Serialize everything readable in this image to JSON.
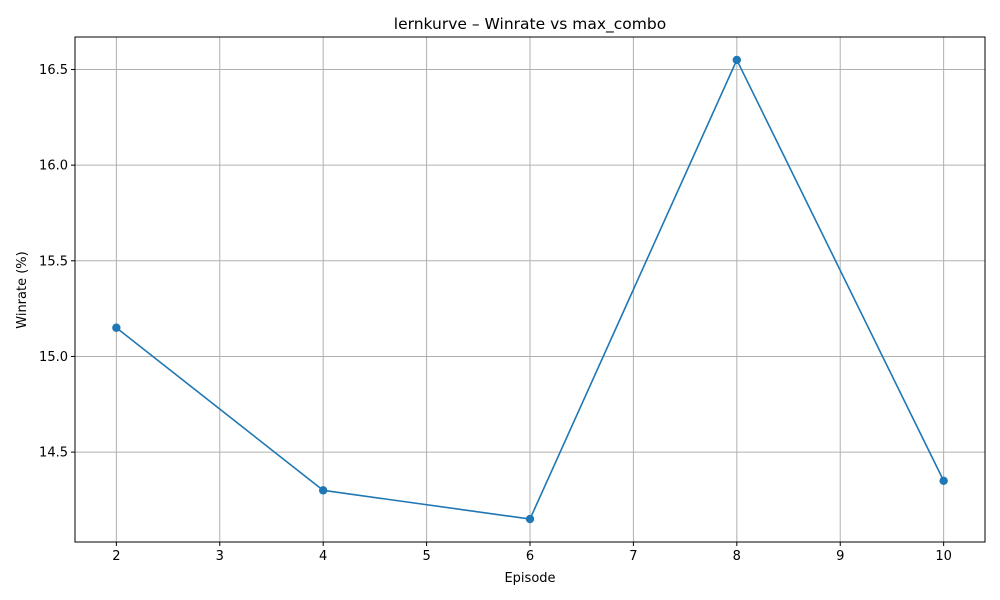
{
  "chart_data": {
    "type": "line",
    "title": "lernkurve – Winrate vs max_combo",
    "xlabel": "Episode",
    "ylabel": "Winrate (%)",
    "xlim": [
      1.6,
      10.4
    ],
    "ylim": [
      14.03,
      16.67
    ],
    "xticks": [
      2,
      3,
      4,
      5,
      6,
      7,
      8,
      9,
      10
    ],
    "yticks": [
      14.5,
      15.0,
      15.5,
      16.0,
      16.5
    ],
    "ytick_labels": [
      "14.5",
      "15.0",
      "15.5",
      "16.0",
      "16.5"
    ],
    "grid": true,
    "series": [
      {
        "x": [
          2,
          4,
          6,
          8,
          10
        ],
        "y": [
          15.15,
          14.3,
          14.15,
          16.55,
          14.35
        ],
        "color": "#1f77b4",
        "marker": "circle"
      }
    ]
  }
}
